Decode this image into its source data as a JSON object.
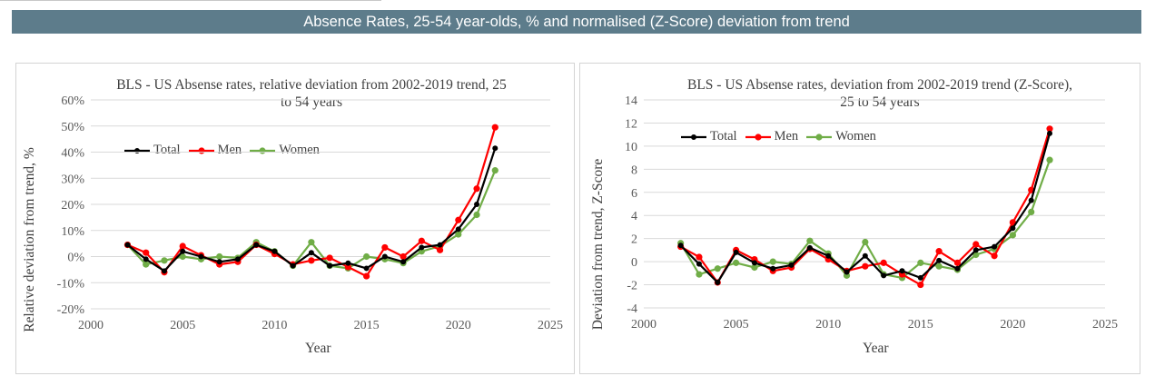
{
  "banner": {
    "title": "Absence Rates, 25-54 year-olds, % and normalised (Z-Score) deviation from trend"
  },
  "colors": {
    "banner_bg": "#5d7c8b",
    "Total": "#000000",
    "Men": "#ff0000",
    "Women": "#70ad47"
  },
  "chart_data": [
    {
      "type": "line",
      "title": "BLS - US Absense rates, relative deviation from 2002-2019 trend, 25 to 54 years",
      "title_lines": [
        "BLS - US Absense rates, relative deviation from 2002-2019 trend, 25",
        "to 54 years"
      ],
      "xlabel": "Year",
      "ylabel": "Relative deviation from trend, %",
      "xlim": [
        2000,
        2025
      ],
      "xticks": [
        2000,
        2005,
        2010,
        2015,
        2020,
        2025
      ],
      "ylim": [
        -20,
        60
      ],
      "yticks": [
        -20,
        -10,
        0,
        10,
        20,
        30,
        40,
        50,
        60
      ],
      "ytick_labels": [
        "-20%",
        "-10%",
        "0%",
        "10%",
        "20%",
        "30%",
        "40%",
        "50%",
        "60%"
      ],
      "grid": "horizontal",
      "legend": [
        "Total",
        "Men",
        "Women"
      ],
      "legend_position": "upper-left",
      "x": [
        2002,
        2003,
        2004,
        2005,
        2006,
        2007,
        2008,
        2009,
        2010,
        2011,
        2012,
        2013,
        2014,
        2015,
        2016,
        2017,
        2018,
        2019,
        2020,
        2021,
        2022
      ],
      "series": [
        {
          "name": "Total",
          "values": [
            4.5,
            -1,
            -5.5,
            2,
            0,
            -2,
            -1,
            4.5,
            2,
            -3.5,
            1.5,
            -3.5,
            -2.5,
            -4.5,
            0,
            -2,
            3.5,
            4.5,
            10.5,
            20,
            41.5
          ]
        },
        {
          "name": "Men",
          "values": [
            4.5,
            1.5,
            -6,
            4,
            0.5,
            -3,
            -2,
            4.5,
            1,
            -3,
            -1.5,
            -0.5,
            -4,
            -7.5,
            3.5,
            0,
            6,
            2.5,
            14,
            26,
            49.5
          ]
        },
        {
          "name": "Women",
          "values": [
            4.5,
            -3,
            -1.5,
            0,
            -1,
            0,
            -0.5,
            5.5,
            2,
            -3.5,
            5.5,
            -3.5,
            -4.5,
            0,
            -1,
            -2.5,
            2,
            4,
            8.5,
            16,
            33
          ]
        }
      ]
    },
    {
      "type": "line",
      "title": "BLS - US Absense rates, deviation from 2002-2019 trend (Z-Score), 25 to 54 years",
      "title_lines": [
        "BLS - US Absense rates, deviation from 2002-2019 trend (Z-Score),",
        "25 to 54 years"
      ],
      "xlabel": "Year",
      "ylabel": "Deviation from trend, Z-Score",
      "xlim": [
        2000,
        2025
      ],
      "xticks": [
        2000,
        2005,
        2010,
        2015,
        2020,
        2025
      ],
      "ylim": [
        -4,
        14
      ],
      "yticks": [
        -4,
        -2,
        0,
        2,
        4,
        6,
        8,
        10,
        12,
        14
      ],
      "ytick_labels": [
        "-4",
        "-2",
        "0",
        "2",
        "4",
        "6",
        "8",
        "10",
        "12",
        "14"
      ],
      "grid": "horizontal",
      "legend": [
        "Total",
        "Men",
        "Women"
      ],
      "legend_position": "upper-left",
      "x": [
        2002,
        2003,
        2004,
        2005,
        2006,
        2007,
        2008,
        2009,
        2010,
        2011,
        2012,
        2013,
        2014,
        2015,
        2016,
        2017,
        2018,
        2019,
        2020,
        2021,
        2022
      ],
      "series": [
        {
          "name": "Total",
          "values": [
            1.4,
            -0.2,
            -1.8,
            0.8,
            -0.1,
            -0.6,
            -0.3,
            1.2,
            0.5,
            -0.9,
            0.5,
            -1.2,
            -0.8,
            -1.4,
            0.1,
            -0.6,
            1.0,
            1.3,
            2.9,
            5.3,
            11.1
          ]
        },
        {
          "name": "Men",
          "values": [
            1.3,
            0.4,
            -1.8,
            1.0,
            0.2,
            -0.8,
            -0.5,
            1.1,
            0.2,
            -0.8,
            -0.4,
            -0.1,
            -1.1,
            -2.0,
            0.9,
            -0.1,
            1.5,
            0.5,
            3.4,
            6.2,
            11.5
          ]
        },
        {
          "name": "Women",
          "values": [
            1.6,
            -1.1,
            -0.6,
            -0.1,
            -0.5,
            0.0,
            -0.2,
            1.8,
            0.7,
            -1.2,
            1.7,
            -1.1,
            -1.4,
            -0.1,
            -0.4,
            -0.7,
            0.6,
            1.1,
            2.3,
            4.3,
            8.8
          ]
        }
      ]
    }
  ]
}
